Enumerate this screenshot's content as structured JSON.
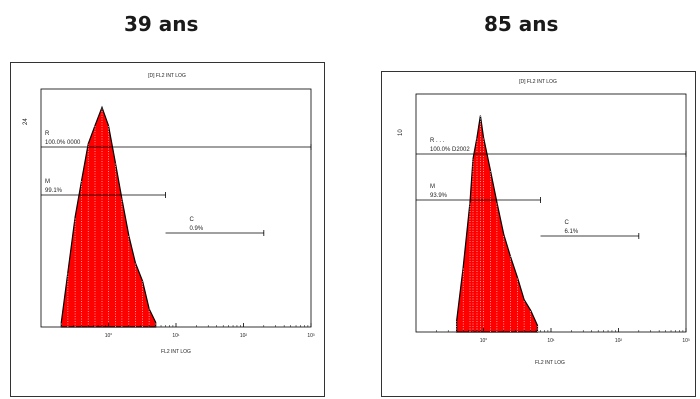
{
  "panels": [
    {
      "age_label": "39 ans",
      "title": "[D] FL2 INT LOG",
      "xlabel": "FL2 INT LOG",
      "y_tick": "24",
      "x_ticks": [
        "10°",
        "10¹",
        "10²",
        "10³"
      ],
      "gates": [
        {
          "name": "R",
          "percent": "100.0% 0000"
        },
        {
          "name": "M",
          "percent": "99.1%"
        },
        {
          "name": "C",
          "percent": "0.9%"
        }
      ]
    },
    {
      "age_label": "85 ans",
      "title": "[D] FL2 INT LOG",
      "xlabel": "FL2 INT LOG",
      "y_tick": "10",
      "x_ticks": [
        "10°",
        "10¹",
        "10²",
        "10³"
      ],
      "gates": [
        {
          "name": "R . . .",
          "percent": "100.0% D2002"
        },
        {
          "name": "M",
          "percent": "93.9%"
        },
        {
          "name": "C",
          "percent": "6.1%"
        }
      ]
    }
  ],
  "colors": {
    "fill": "#ff0000",
    "line": "#000000"
  },
  "chart_data": [
    {
      "type": "area",
      "title": "[D] FL2 INT LOG",
      "xlabel": "FL2 INT LOG",
      "x_scale": "log",
      "xlim": [
        1,
        10000
      ],
      "x": [
        2.0,
        2.5,
        3.2,
        4.0,
        5.0,
        6.3,
        8.0,
        10,
        12.6,
        15.8,
        20,
        25,
        32,
        40,
        50
      ],
      "values": [
        0.5,
        6,
        12,
        16,
        20,
        22,
        24,
        22,
        18,
        14,
        10,
        7,
        5,
        2,
        0.5
      ],
      "gates": [
        {
          "name": "R",
          "range": [
            1,
            10000
          ],
          "percent": 100.0
        },
        {
          "name": "M",
          "range": [
            1,
            70
          ],
          "percent": 99.1
        },
        {
          "name": "C",
          "range": [
            70,
            2000
          ],
          "percent": 0.9
        }
      ]
    },
    {
      "type": "area",
      "title": "[D] FL2 INT LOG",
      "xlabel": "FL2 INT LOG",
      "x_scale": "log",
      "xlim": [
        1,
        10000
      ],
      "x": [
        4.0,
        5.0,
        6.3,
        7.0,
        8.0,
        9.0,
        10,
        12.6,
        15.8,
        20,
        25,
        32,
        40,
        50,
        63
      ],
      "values": [
        0.5,
        3,
        6,
        8,
        9,
        10,
        9,
        7.5,
        6,
        4.5,
        3.5,
        2.5,
        1.5,
        1,
        0.3
      ],
      "gates": [
        {
          "name": "R",
          "range": [
            1,
            10000
          ],
          "percent": 100.0
        },
        {
          "name": "M",
          "range": [
            1,
            70
          ],
          "percent": 93.9
        },
        {
          "name": "C",
          "range": [
            70,
            2000
          ],
          "percent": 6.1
        }
      ]
    }
  ]
}
